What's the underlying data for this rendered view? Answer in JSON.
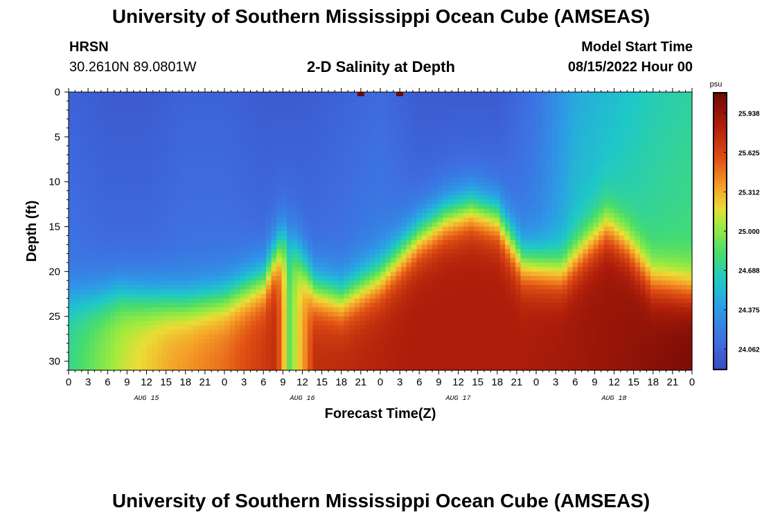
{
  "header": {
    "title": "University of Southern Mississippi Ocean Cube (AMSEAS)",
    "station": "HRSN",
    "coords": "30.2610N  89.0801W",
    "subtitle": "2-D Salinity at Depth",
    "model_label": "Model Start Time",
    "model_time": "08/15/2022 Hour 00"
  },
  "footer": {
    "title": "University of Southern Mississippi Ocean Cube (AMSEAS)"
  },
  "chart_data": {
    "type": "heatmap",
    "title": "2-D Salinity at Depth",
    "xlabel": "Forecast Time(Z)",
    "ylabel": "Depth (ft)",
    "x_ticks": [
      "0",
      "3",
      "6",
      "9",
      "12",
      "15",
      "18",
      "21",
      "0",
      "3",
      "6",
      "9",
      "12",
      "15",
      "18",
      "21",
      "0",
      "3",
      "6",
      "9",
      "12",
      "15",
      "18",
      "21",
      "0",
      "3",
      "6",
      "9",
      "12",
      "15",
      "18",
      "21",
      "0"
    ],
    "x_range_hours": [
      0,
      96
    ],
    "date_labels": [
      {
        "label": "AUG 15",
        "hour": 12
      },
      {
        "label": "AUG 16",
        "hour": 36
      },
      {
        "label": "AUG 17",
        "hour": 60
      },
      {
        "label": "AUG 18",
        "hour": 84
      }
    ],
    "y_ticks": [
      0,
      5,
      10,
      15,
      20,
      25,
      30
    ],
    "ylim": [
      0,
      31
    ],
    "colorbar": {
      "unit": "psu",
      "min": 23.9,
      "max": 26.1,
      "tick_labels": [
        "25.938",
        "25.625",
        "25.312",
        "25.000",
        "24.688",
        "24.375",
        "24.062"
      ],
      "tick_values": [
        25.938,
        25.625,
        25.312,
        25.0,
        24.688,
        24.375,
        24.062
      ]
    },
    "halocline_depth_by_hour": [
      [
        0,
        23
      ],
      [
        4,
        23
      ],
      [
        8,
        22.5
      ],
      [
        12,
        23
      ],
      [
        18,
        23.5
      ],
      [
        24,
        23
      ],
      [
        30,
        21
      ],
      [
        33,
        16.5
      ],
      [
        35,
        17.5
      ],
      [
        38,
        22
      ],
      [
        42,
        23
      ],
      [
        48,
        20.5
      ],
      [
        54,
        16
      ],
      [
        58,
        14
      ],
      [
        62,
        13
      ],
      [
        66,
        14
      ],
      [
        70,
        19
      ],
      [
        76,
        20
      ],
      [
        80,
        17
      ],
      [
        83,
        15
      ],
      [
        86,
        17
      ],
      [
        90,
        21
      ],
      [
        96,
        22
      ]
    ],
    "surface_value_by_hour": [
      [
        0,
        24.05
      ],
      [
        6,
        24.0
      ],
      [
        12,
        24.0
      ],
      [
        18,
        24.05
      ],
      [
        24,
        24.05
      ],
      [
        30,
        24.0
      ],
      [
        36,
        24.0
      ],
      [
        42,
        24.05
      ],
      [
        48,
        24.1
      ],
      [
        54,
        24.0
      ],
      [
        60,
        24.0
      ],
      [
        66,
        24.0
      ],
      [
        72,
        24.15
      ],
      [
        78,
        24.45
      ],
      [
        84,
        24.55
      ],
      [
        90,
        24.65
      ],
      [
        96,
        24.7
      ]
    ],
    "bottom_value_by_hour": [
      [
        0,
        24.75
      ],
      [
        8,
        25.1
      ],
      [
        16,
        25.35
      ],
      [
        24,
        25.5
      ],
      [
        32,
        25.75
      ],
      [
        34,
        24.9
      ],
      [
        38,
        25.75
      ],
      [
        46,
        25.8
      ],
      [
        54,
        25.85
      ],
      [
        62,
        25.85
      ],
      [
        70,
        25.85
      ],
      [
        78,
        25.9
      ],
      [
        86,
        25.95
      ],
      [
        96,
        26.05
      ]
    ],
    "surface_anomalies": [
      {
        "hour": 45,
        "depth": 0,
        "value": 26.1
      },
      {
        "hour": 51,
        "depth": 0,
        "value": 26.1
      }
    ]
  }
}
